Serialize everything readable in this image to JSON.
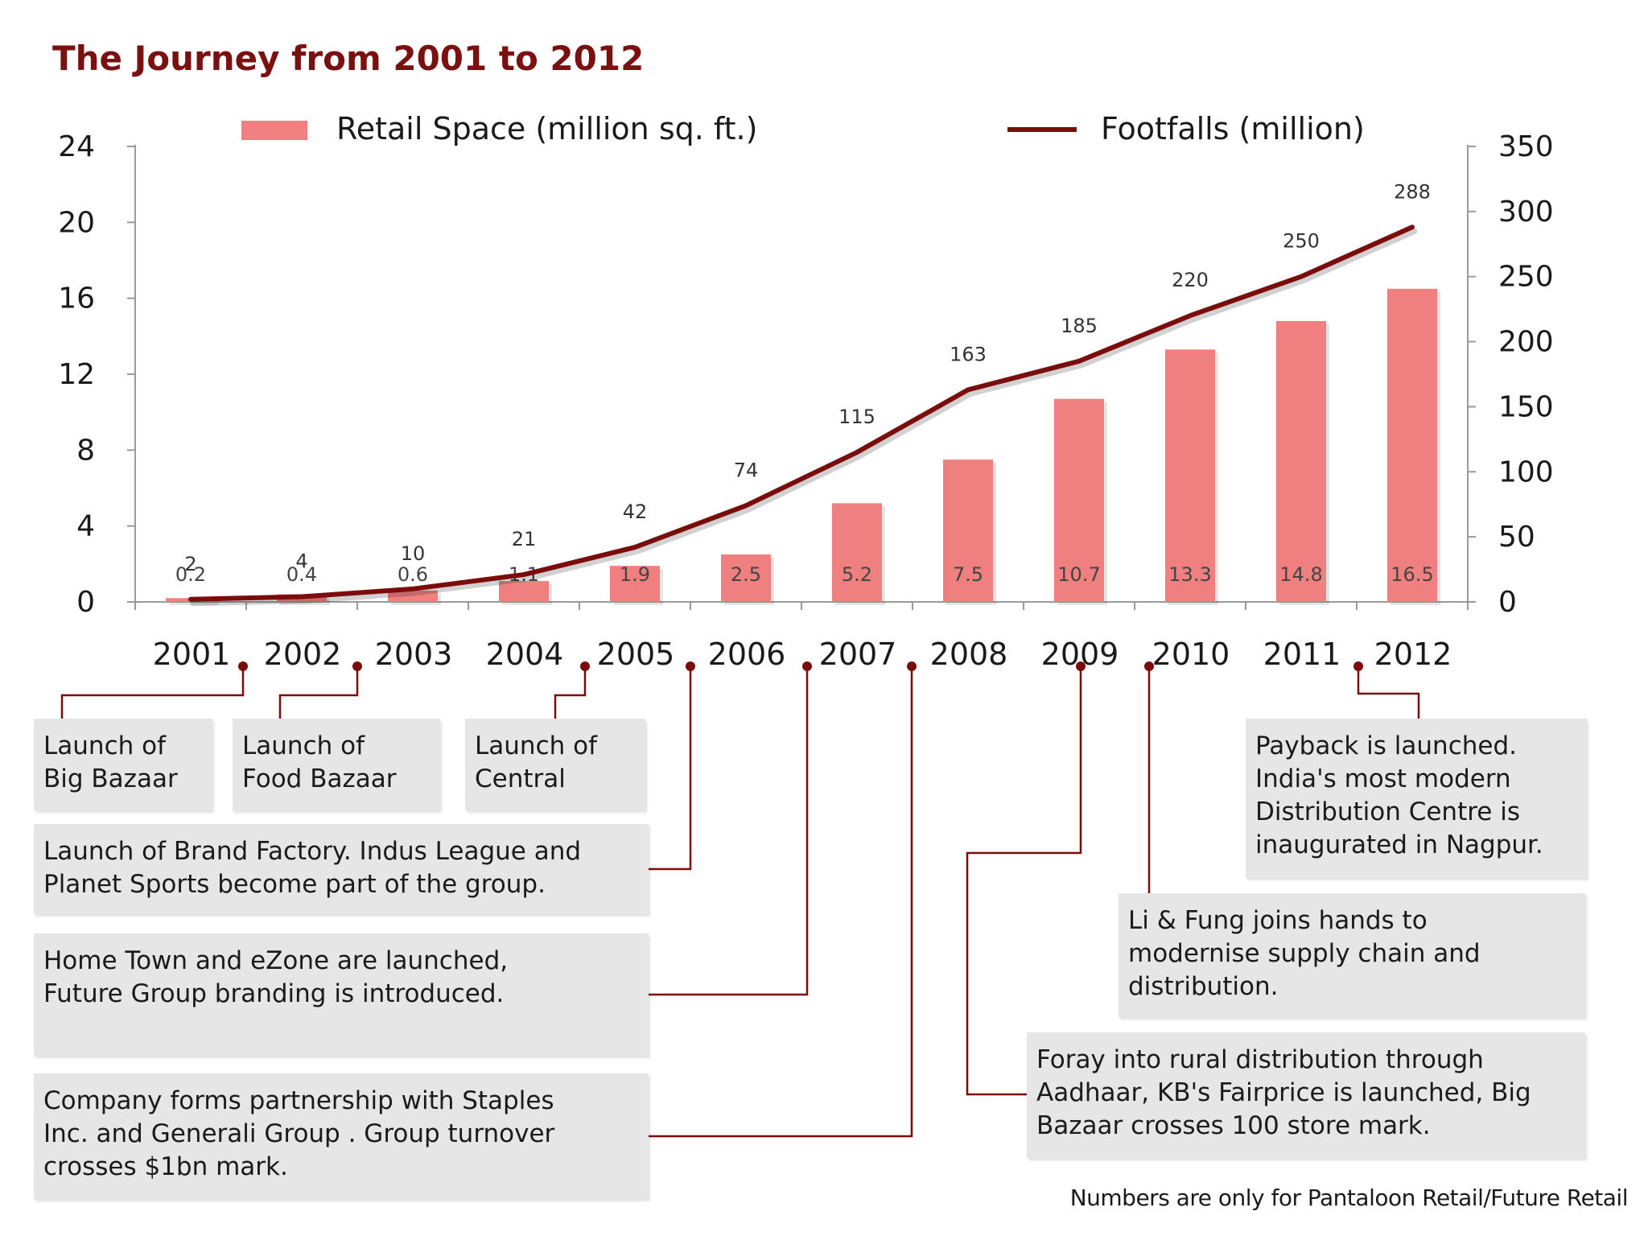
{
  "chart_data": {
    "type": "bar+line",
    "title": "The Journey from 2001 to 2012",
    "categories": [
      "2001",
      "2002",
      "2003",
      "2004",
      "2005",
      "2006",
      "2007",
      "2008",
      "2009",
      "2010",
      "2011",
      "2012"
    ],
    "series": [
      {
        "name": "Retail Space (million sq. ft.)",
        "type": "bar",
        "axis": "left",
        "values": [
          0.2,
          0.4,
          0.6,
          1.1,
          1.9,
          2.5,
          5.2,
          7.5,
          10.7,
          13.3,
          14.8,
          16.5
        ],
        "labels": [
          "0.2",
          "0.4",
          "0.6",
          "1.1",
          "1.9",
          "2.5",
          "5.2",
          "7.5",
          "10.7",
          "13.3",
          "14.8",
          "16.5"
        ],
        "color": "#f08080"
      },
      {
        "name": "Footfalls (million)",
        "type": "line",
        "axis": "right",
        "values": [
          2,
          4,
          10,
          21,
          42,
          74,
          115,
          163,
          185,
          220,
          250,
          288
        ],
        "labels": [
          "2",
          "4",
          "10",
          "21",
          "42",
          "74",
          "115",
          "163",
          "185",
          "220",
          "250",
          "288"
        ],
        "color": "#7a0c0c"
      }
    ],
    "left_axis": {
      "ylim": [
        0,
        24
      ],
      "ticks": [
        "0",
        "4",
        "8",
        "12",
        "16",
        "20",
        "24"
      ]
    },
    "right_axis": {
      "ylim": [
        0,
        350
      ],
      "ticks": [
        "0",
        "50",
        "100",
        "150",
        "200",
        "250",
        "300",
        "350"
      ]
    },
    "legend_position": "top",
    "annotations": [
      {
        "event_year": "2001",
        "text": "Launch of Big Bazaar"
      },
      {
        "event_year": "2002",
        "text": "Launch of Food Bazaar"
      },
      {
        "event_year": "2004",
        "text": "Launch of Central"
      },
      {
        "event_year": "2005",
        "text": "Launch of Brand Factory. Indus League and Planet Sports become part of the group."
      },
      {
        "event_year": "2006",
        "text": "Home Town and eZone are launched, Future Group branding is introduced."
      },
      {
        "event_year": "2007",
        "text": "Company forms partnership with Staples Inc. and Generali Group . Group turnover crosses $1bn mark."
      },
      {
        "event_year": "2009",
        "text": "Foray into rural distribution through Aadhaar, KB's Fairprice is launched, Big Bazaar crosses 100 store mark."
      },
      {
        "event_year": "2010",
        "text": "Li & Fung joins hands to modernise supply chain and distribution."
      },
      {
        "event_year": "2011",
        "text": "Payback is launched. India's most modern Distribution Centre is inaugurated in Nagpur."
      }
    ],
    "footnote": "Numbers are only for Pantaloon Retail/Future Retail"
  },
  "annotation_lines": {
    "big_bazaar": [
      "Launch of",
      "Big Bazaar"
    ],
    "food_bazaar": [
      "Launch of",
      "Food Bazaar"
    ],
    "central": [
      "Launch of",
      "Central"
    ],
    "brand_factory": [
      "Launch of Brand Factory. Indus League and",
      "Planet Sports become part of the group."
    ],
    "home_town": [
      "Home Town and eZone are launched,",
      "Future Group branding is introduced."
    ],
    "staples": [
      "Company forms partnership with Staples",
      "Inc. and Generali Group . Group turnover",
      "crosses $1bn mark."
    ],
    "payback": [
      "Payback is launched.",
      "India's most modern",
      "Distribution Centre is",
      "inaugurated in Nagpur."
    ],
    "li_fung": [
      "Li & Fung joins hands to",
      "modernise supply chain and",
      "distribution."
    ],
    "foray": [
      "Foray into rural distribution through",
      "Aadhaar, KB's Fairprice is launched, Big",
      "Bazaar crosses 100 store mark."
    ]
  }
}
